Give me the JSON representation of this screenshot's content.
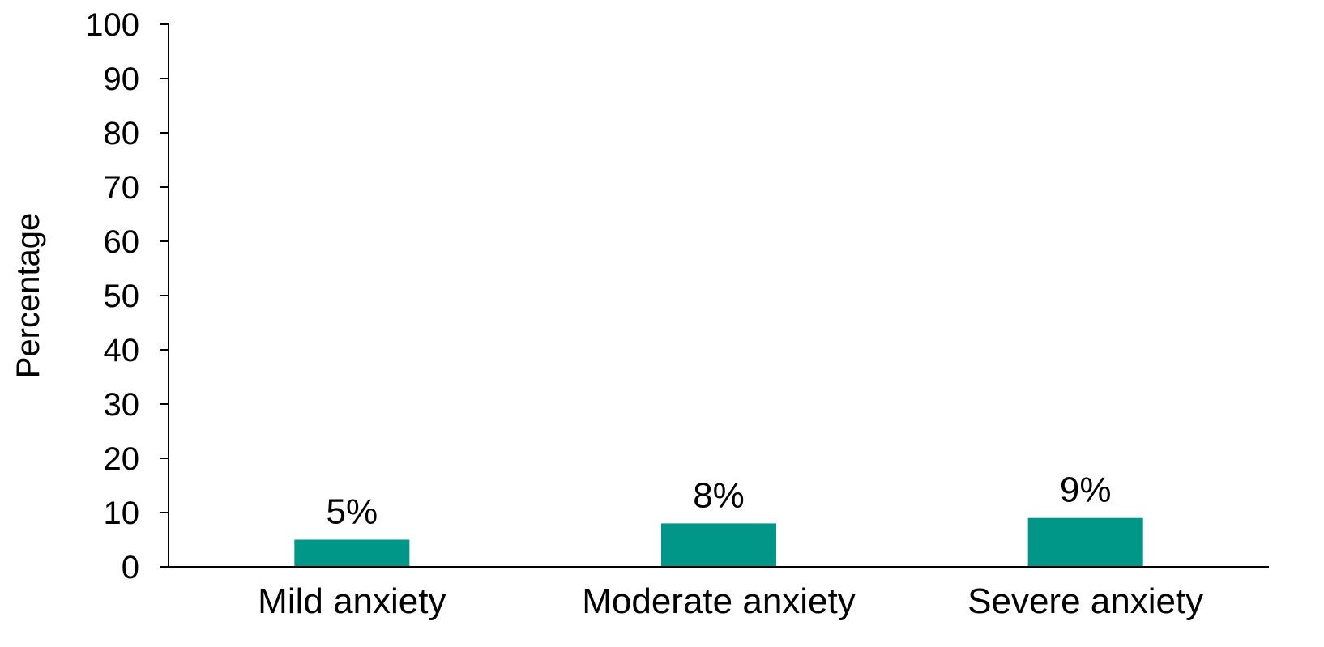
{
  "chart_data": {
    "type": "bar",
    "title": "",
    "xlabel": "",
    "ylabel": "Percentage",
    "ylim": [
      0,
      100
    ],
    "yticks": [
      0,
      10,
      20,
      30,
      40,
      50,
      60,
      70,
      80,
      90,
      100
    ],
    "categories": [
      "Mild anxiety",
      "Moderate anxiety",
      "Severe anxiety"
    ],
    "values": [
      5,
      8,
      9
    ],
    "data_labels": [
      "5%",
      "8%",
      "9%"
    ],
    "bar_color": "#009688",
    "grid": false,
    "legend": "none"
  }
}
